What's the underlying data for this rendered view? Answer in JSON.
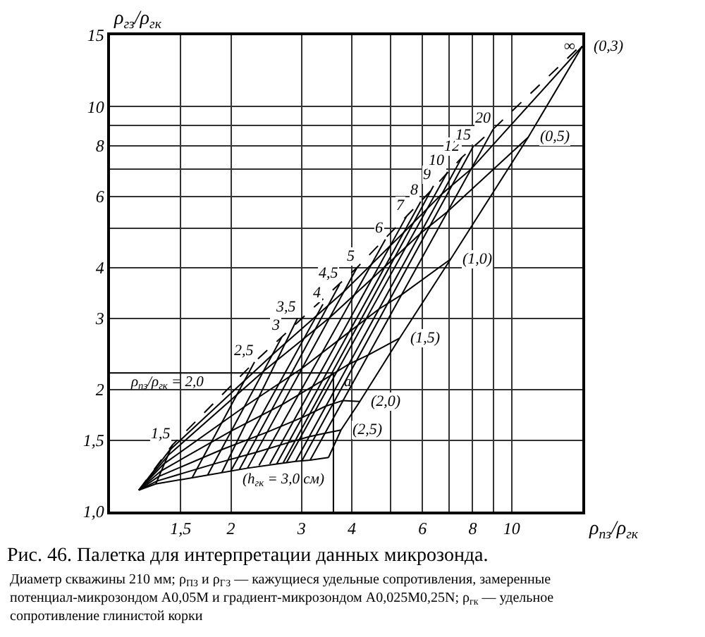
{
  "chart_data": {
    "type": "line",
    "title": "Рис. 46. Палетка для интерпретации данных микрозонда.",
    "xlabel": "ρ$_{пз}$/ρ$_{гк}$",
    "ylabel": "ρ$_{гз}$/ρ$_{гк}$",
    "log": "xy",
    "grid": true,
    "xlim": [
      1,
      15
    ],
    "ylim": [
      1,
      15
    ],
    "xticks": [
      {
        "value": 1.5,
        "label": "1,5"
      },
      2,
      3,
      4,
      {
        "value": 5,
        "label": null
      },
      6,
      {
        "value": 7,
        "label": null
      },
      8,
      {
        "value": 9,
        "label": null
      },
      10
    ],
    "yticks": [
      {
        "value": 1,
        "label": "1,0"
      },
      {
        "value": 1.5,
        "label": "1,5"
      },
      2,
      3,
      4,
      {
        "value": 5,
        "label": null
      },
      6,
      {
        "value": 7,
        "label": null
      },
      8,
      {
        "value": 9,
        "label": null
      },
      10,
      15
    ],
    "series": [
      {
        "color": "#000000",
        "line_style": "dashed",
        "x": [
          1.18,
          1.43,
          2.29,
          4.12,
          5.94,
          7.52,
          9.0,
          14.6
        ],
        "values": [
          1.13,
          1.46,
          2.34,
          4.0,
          5.83,
          7.49,
          8.8,
          13.9
        ]
      },
      {
        "name": "1,5",
        "color": "#000000",
        "x": [
          1.3,
          1.43
        ],
        "values": [
          1.17,
          1.46
        ]
      },
      {
        "name": "2,5",
        "color": "#000000",
        "x": [
          1.6,
          2.29
        ],
        "values": [
          1.21,
          2.34
        ]
      },
      {
        "name": "3",
        "color": "#000000",
        "x": [
          1.75,
          2.68
        ],
        "values": [
          1.23,
          2.7
        ]
      },
      {
        "name": "3,5",
        "color": "#000000",
        "x": [
          1.9,
          2.93
        ],
        "values": [
          1.25,
          3.0
        ]
      },
      {
        "name": "4",
        "color": "#000000",
        "x": [
          2.0,
          3.39
        ],
        "values": [
          1.26,
          3.25
        ]
      },
      {
        "name": "4,5",
        "color": "#000000",
        "x": [
          2.1,
          3.73
        ],
        "values": [
          1.27,
          3.64
        ]
      },
      {
        "name": "5",
        "color": "#000000",
        "x": [
          2.2,
          4.12
        ],
        "values": [
          1.28,
          4.0
        ]
      },
      {
        "name": "6",
        "color": "#000000",
        "x": [
          2.35,
          4.85
        ],
        "values": [
          1.3,
          4.7
        ]
      },
      {
        "name": "7",
        "color": "#000000",
        "x": [
          2.5,
          5.47
        ],
        "values": [
          1.31,
          5.35
        ]
      },
      {
        "name": "8",
        "color": "#000000",
        "x": [
          2.6,
          5.94
        ],
        "values": [
          1.31,
          5.83
        ]
      },
      {
        "name": "9",
        "color": "#000000",
        "x": [
          2.7,
          6.39
        ],
        "values": [
          1.32,
          6.37
        ]
      },
      {
        "name": "10",
        "color": "#000000",
        "x": [
          2.75,
          6.93
        ],
        "values": [
          1.32,
          6.9
        ]
      },
      {
        "name": "12",
        "color": "#000000",
        "x": [
          2.9,
          7.52
        ],
        "values": [
          1.33,
          7.49
        ]
      },
      {
        "name": "15",
        "color": "#000000",
        "x": [
          3.0,
          8.03
        ],
        "values": [
          1.33,
          7.98
        ]
      },
      {
        "name": "20",
        "color": "#000000",
        "x": [
          3.15,
          9.0
        ],
        "values": [
          1.34,
          8.8
        ]
      },
      {
        "name": "∞",
        "color": "#000000",
        "x": [
          3.5,
          3.76,
          4.19,
          5.26,
          7.05,
          11.0,
          15
        ],
        "values": [
          1.36,
          1.59,
          1.87,
          2.68,
          4.2,
          8.4,
          14.1
        ]
      },
      {
        "name": "(0,3)",
        "color": "#000000",
        "x": [
          1.18,
          1.41,
          2.55,
          3.82,
          5.38,
          6.7,
          7.93,
          15
        ],
        "values": [
          1.13,
          1.42,
          2.45,
          3.49,
          4.88,
          6.08,
          7.01,
          14.1
        ]
      },
      {
        "name": "(0,5)",
        "color": "#000000",
        "x": [
          1.18,
          1.4,
          2.41,
          3.52,
          4.83,
          5.93,
          6.92,
          11.0
        ],
        "values": [
          1.13,
          1.38,
          2.22,
          3.01,
          4.02,
          4.86,
          5.5,
          8.4
        ]
      },
      {
        "name": "(1,0)",
        "color": "#000000",
        "x": [
          1.18,
          1.36,
          2.17,
          3.01,
          3.93,
          4.67,
          5.32,
          7.05
        ],
        "values": [
          1.13,
          1.31,
          1.82,
          2.26,
          2.77,
          3.16,
          3.43,
          4.2
        ]
      },
      {
        "name": "(1,5)",
        "color": "#000000",
        "x": [
          1.18,
          1.34,
          2.0,
          2.69,
          3.39,
          3.93,
          4.41,
          5.26
        ],
        "values": [
          1.13,
          1.26,
          1.58,
          1.84,
          2.11,
          2.31,
          2.44,
          2.68
        ]
      },
      {
        "name": "(2,0)",
        "color": "#000000",
        "x": [
          1.18,
          1.32,
          1.89,
          2.46,
          3.02,
          3.44,
          3.8,
          4.19
        ],
        "values": [
          1.13,
          1.22,
          1.42,
          1.57,
          1.71,
          1.82,
          1.88,
          1.87
        ]
      },
      {
        "name": "(2,5)",
        "color": "#000000",
        "x": [
          1.18,
          1.31,
          1.81,
          2.31,
          2.78,
          3.13,
          3.42,
          3.76
        ],
        "values": [
          1.13,
          1.19,
          1.31,
          1.4,
          1.48,
          1.53,
          1.56,
          1.59
        ]
      },
      {
        "color": "#000000",
        "x": [
          1.18,
          1.3,
          1.75,
          2.2,
          2.6,
          2.9,
          3.15,
          3.5
        ],
        "values": [
          1.13,
          1.17,
          1.23,
          1.28,
          1.31,
          1.33,
          1.34,
          1.36
        ]
      },
      {
        "color": "#000000",
        "x": [
          1,
          3.6,
          3.6
        ],
        "values": [
          2.2,
          2.2,
          1
        ]
      }
    ],
    "annotations": [
      {
        "text": "ρ$_{пз}$/ρ$_{гк}$ = 2,0",
        "x": 1.05,
        "y": 2.2
      },
      {
        "text": "a",
        "x": 3.6,
        "y": 2.2
      },
      {
        "text": "(h$_{гк}$ = 3,0 см)",
        "x": 2.0,
        "y": 1.26
      },
      "Диаметр скважины 210 мм; ρ$_{ПЗ}$ и ρ$_{ГЗ}$ — кажущиеся удельные сопротивления, замеренные потенциал-микрозондом A0,05M и градиент-микрозондом A0,025M0,25N; ρ$_{гк}$ — удельное сопротивление глинистой корки"
    ]
  }
}
